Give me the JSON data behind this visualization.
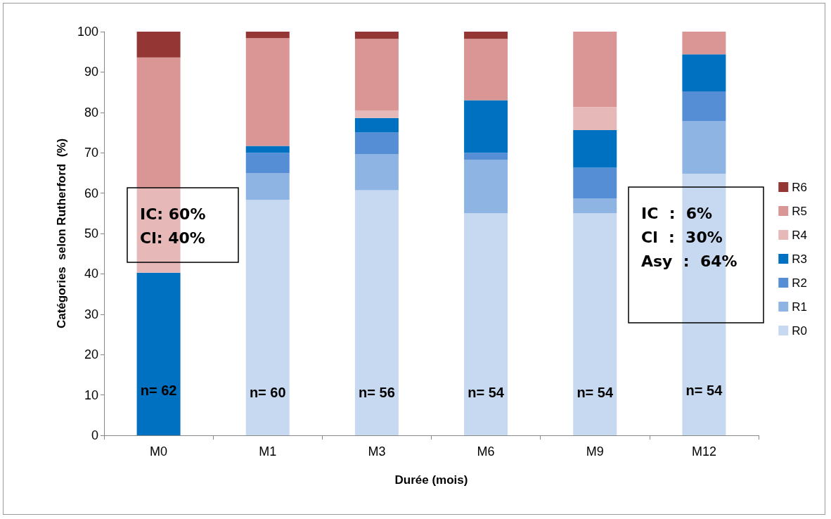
{
  "chart_data": {
    "type": "bar",
    "stacked": true,
    "xlabel": "Durée (mois)",
    "ylabel": "Catégories  selon Rutherford  (%)",
    "categories": [
      "M0",
      "M1",
      "M3",
      "M6",
      "M9",
      "M12"
    ],
    "ylim": [
      0,
      100
    ],
    "yticks": [
      0,
      10,
      20,
      30,
      40,
      50,
      60,
      70,
      80,
      90,
      100
    ],
    "grid": false,
    "legend": "right",
    "series": [
      {
        "name": "R0",
        "color": "#c6d9f1",
        "values": [
          0,
          58.3,
          60.7,
          55,
          55,
          64.8
        ]
      },
      {
        "name": "R1",
        "color": "#8eb4e3",
        "values": [
          0,
          6.7,
          8.9,
          13.2,
          3.7,
          13
        ]
      },
      {
        "name": "R2",
        "color": "#558ed5",
        "values": [
          0,
          5,
          5.4,
          1.8,
          7.6,
          7.4
        ]
      },
      {
        "name": "R3",
        "color": "#0070c0",
        "values": [
          40.3,
          1.7,
          3.6,
          13,
          9.3,
          9.2
        ]
      },
      {
        "name": "R4",
        "color": "#e6b9b8",
        "values": [
          21,
          0,
          1.8,
          0,
          5.7,
          0
        ]
      },
      {
        "name": "R5",
        "color": "#d99694",
        "values": [
          32.3,
          26.7,
          17.8,
          15.2,
          18.7,
          5.6
        ]
      },
      {
        "name": "R6",
        "color": "#943634",
        "values": [
          6.4,
          1.6,
          1.8,
          1.8,
          0,
          0
        ]
      }
    ],
    "annotations": [
      "n= 62",
      "n= 60",
      "n= 56",
      "n= 54",
      "n= 54",
      "n= 54",
      "IC: 60%\nCl: 40%",
      "IC  :  6%\nCl  :  30%\nAsy  :  64%"
    ]
  }
}
